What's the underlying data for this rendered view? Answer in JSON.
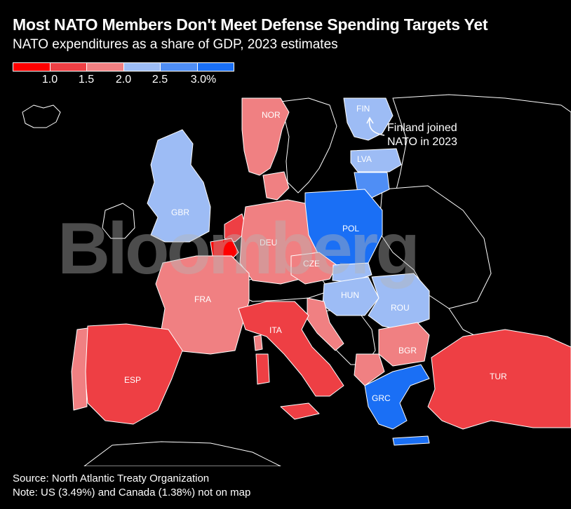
{
  "header": {
    "title": "Most NATO Members Don't Meet Defense Spending Targets Yet",
    "subtitle": "NATO expenditures as a share of GDP, 2023 estimates"
  },
  "legend": {
    "colors": [
      "#ff0000",
      "#ee3f44",
      "#f08082",
      "#9dbcf5",
      "#4f8ef5",
      "#1a6ff5"
    ],
    "ticks": [
      "1.0",
      "1.5",
      "2.0",
      "2.5",
      "3.0%"
    ]
  },
  "map": {
    "colors": {
      "under_1_0": "#ff0000",
      "1_0_to_1_5": "#ee3f44",
      "1_5_to_2_0": "#f08082",
      "2_0_to_2_5": "#9dbcf5",
      "2_5_to_3_0": "#4f8ef5",
      "over_3_0": "#1a6ff5",
      "non_member": "#000000",
      "border": "#ffffff"
    },
    "countries": {
      "NOR": "NOR",
      "FIN": "FIN",
      "LVA": "LVA",
      "GBR": "GBR",
      "POL": "POL",
      "DEU": "DEU",
      "CZE": "CZE",
      "FRA": "FRA",
      "HUN": "HUN",
      "ROU": "ROU",
      "ITA": "ITA",
      "BGR": "BGR",
      "ESP": "ESP",
      "TUR": "TUR",
      "GRC": "GRC"
    },
    "annotation": [
      "Finland joined",
      "NATO in 2023"
    ]
  },
  "watermark": "Bloomberg",
  "footer": {
    "source": "Source: North Atlantic Treaty Organization",
    "note": "Note: US (3.49%) and Canada (1.38%) not on map"
  }
}
